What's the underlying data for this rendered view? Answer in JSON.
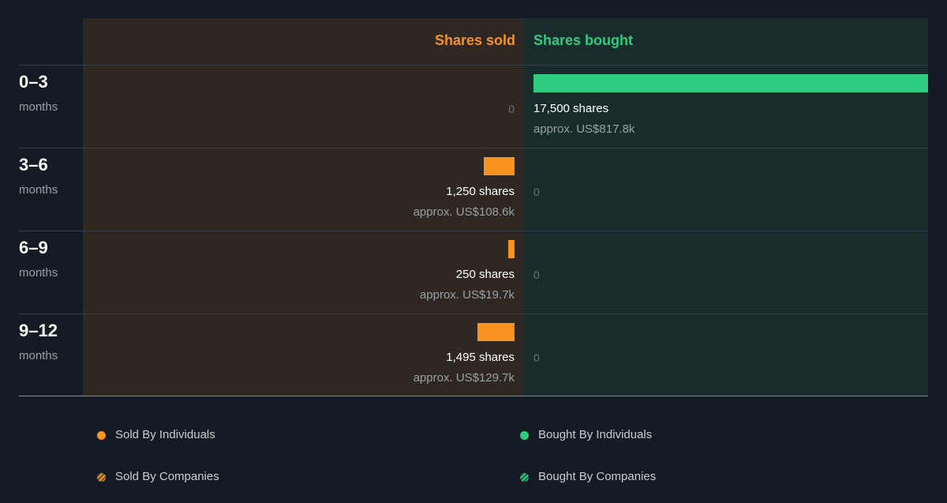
{
  "chart_data": {
    "type": "bar",
    "headers": {
      "sold": "Shares sold",
      "bought": "Shares bought"
    },
    "max_shares": 17500,
    "rows": [
      {
        "period": "0–3",
        "unit": "months",
        "sold": {
          "shares": 0,
          "label": "0",
          "approx": ""
        },
        "bought": {
          "shares": 17500,
          "label": "17,500 shares",
          "approx": "approx. US$817.8k"
        }
      },
      {
        "period": "3–6",
        "unit": "months",
        "sold": {
          "shares": 1250,
          "label": "1,250 shares",
          "approx": "approx. US$108.6k"
        },
        "bought": {
          "shares": 0,
          "label": "0",
          "approx": ""
        }
      },
      {
        "period": "6–9",
        "unit": "months",
        "sold": {
          "shares": 250,
          "label": "250 shares",
          "approx": "approx. US$19.7k"
        },
        "bought": {
          "shares": 0,
          "label": "0",
          "approx": ""
        }
      },
      {
        "period": "9–12",
        "unit": "months",
        "sold": {
          "shares": 1495,
          "label": "1,495 shares",
          "approx": "approx. US$129.7k"
        },
        "bought": {
          "shares": 0,
          "label": "0",
          "approx": ""
        }
      }
    ]
  },
  "colors": {
    "sold": "#f7931e",
    "bought": "#2ecc80",
    "sold_panel": "#2f2721",
    "bought_panel": "#192c2b"
  },
  "legend": {
    "sold_individuals": "Sold By Individuals",
    "sold_companies": "Sold By Companies",
    "bought_individuals": "Bought By Individuals",
    "bought_companies": "Bought By Companies"
  }
}
